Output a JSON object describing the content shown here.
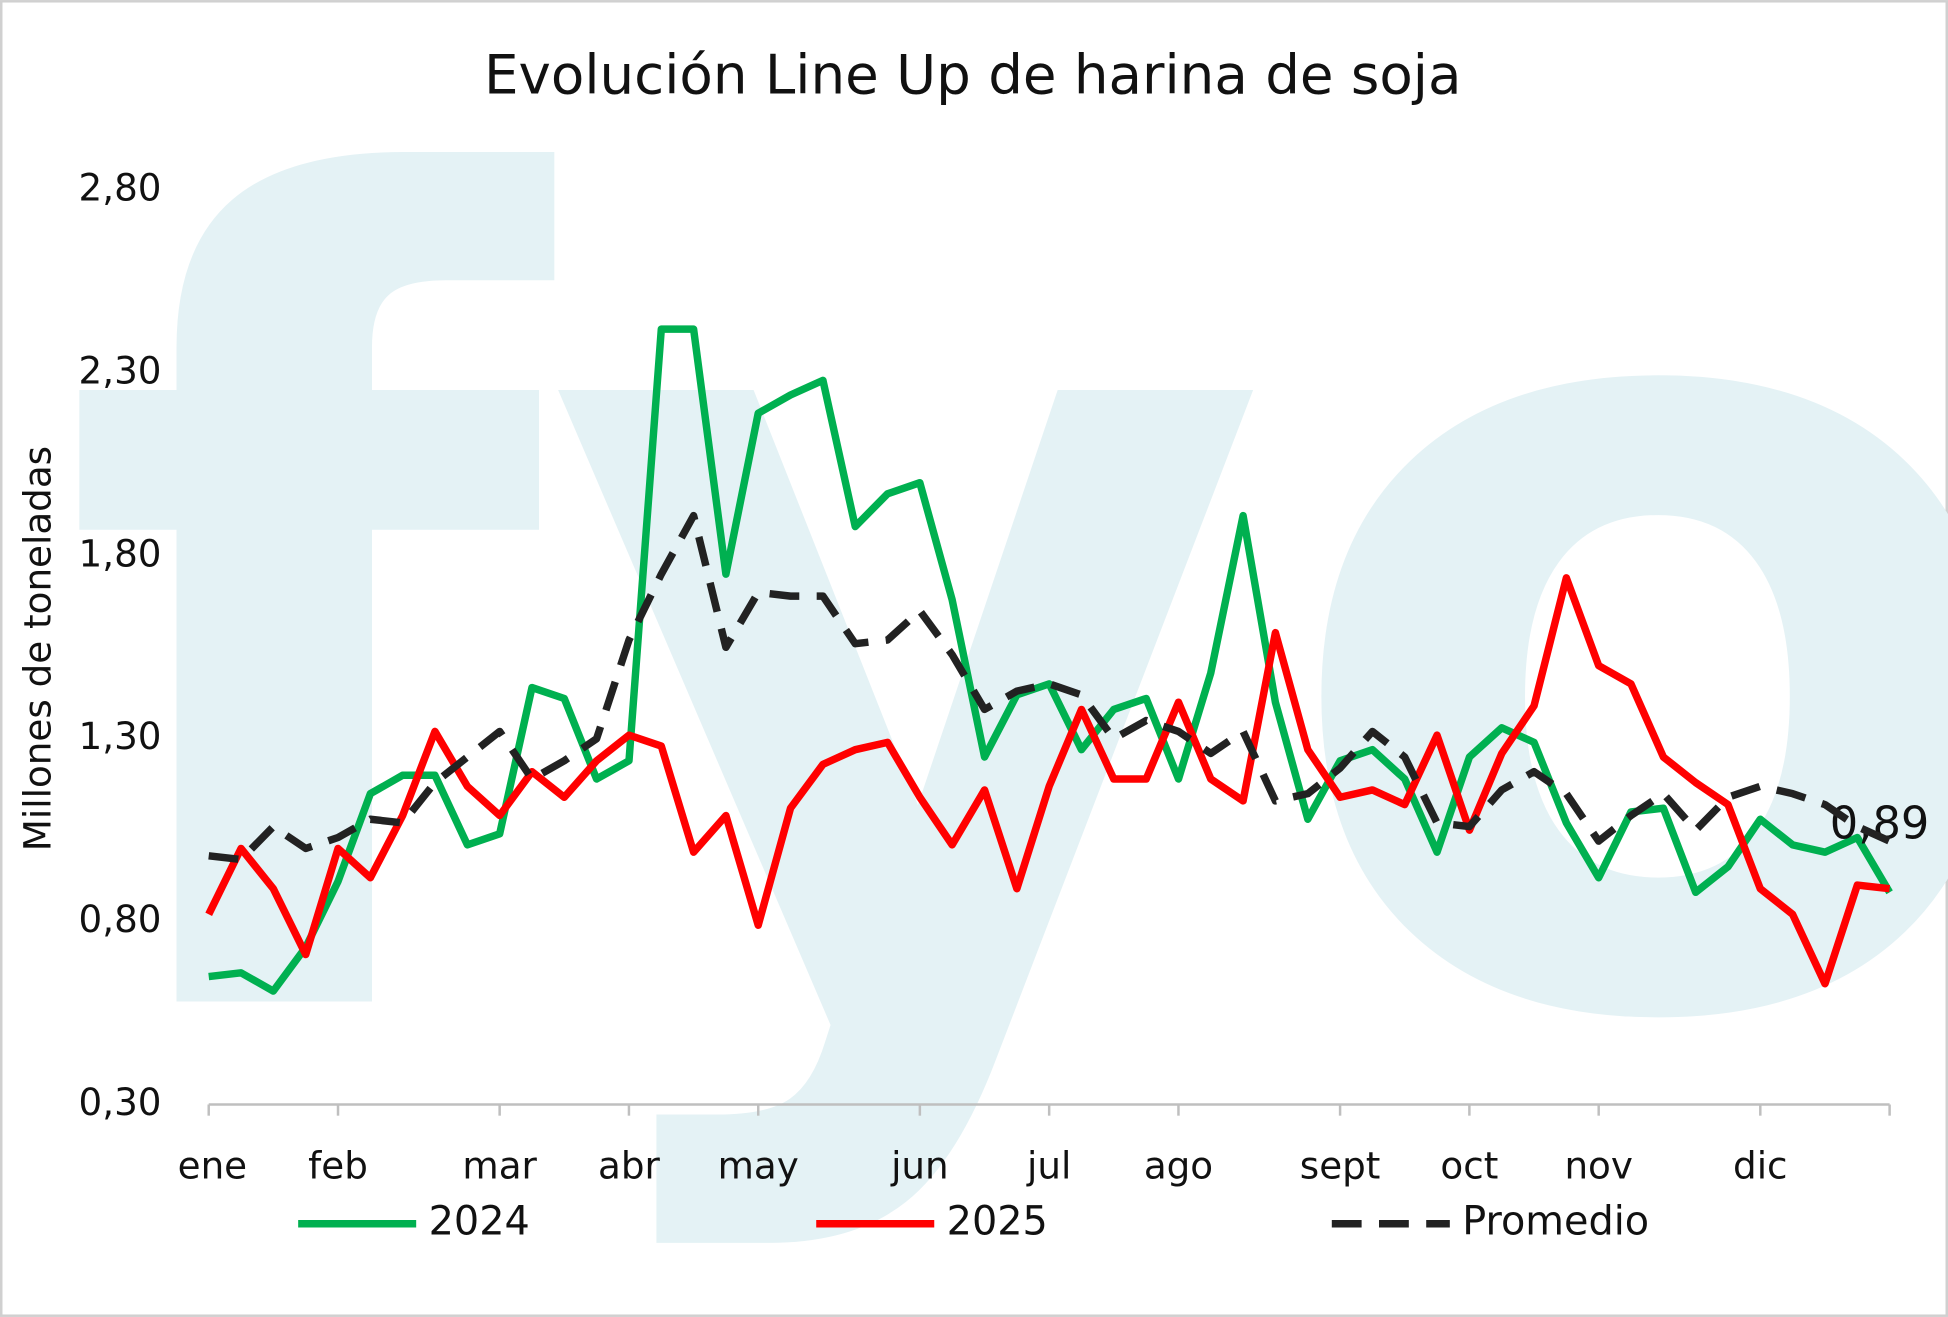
{
  "chart_data": {
    "type": "line",
    "title": "Evolución Line Up de harina de soja",
    "ylabel": "Millones de toneladas",
    "watermark": "fyo",
    "categories": [
      "ene",
      null,
      null,
      null,
      "feb",
      null,
      null,
      null,
      null,
      "mar",
      null,
      null,
      null,
      "abr",
      null,
      null,
      null,
      "may",
      null,
      null,
      null,
      null,
      "jun",
      null,
      null,
      null,
      "jul",
      null,
      null,
      null,
      "ago",
      null,
      null,
      null,
      null,
      "sept",
      null,
      null,
      null,
      "oct",
      null,
      null,
      null,
      "nov",
      null,
      null,
      null,
      null,
      "dic",
      null,
      null,
      null,
      null
    ],
    "series": [
      {
        "name": "2024",
        "color": "#00b050",
        "dash": false,
        "values": [
          0.65,
          0.66,
          0.61,
          0.73,
          0.91,
          1.15,
          1.2,
          1.2,
          1.01,
          1.04,
          1.44,
          1.41,
          1.19,
          1.24,
          2.42,
          2.42,
          1.75,
          2.19,
          2.24,
          2.28,
          1.88,
          1.97,
          2.0,
          1.68,
          1.25,
          1.42,
          1.45,
          1.27,
          1.38,
          1.41,
          1.19,
          1.48,
          1.91,
          1.4,
          1.08,
          1.24,
          1.27,
          1.19,
          0.99,
          1.25,
          1.33,
          1.29,
          1.07,
          0.92,
          1.1,
          1.11,
          0.88,
          0.95,
          1.08,
          1.01,
          0.99,
          1.03,
          0.88
        ]
      },
      {
        "name": "2025",
        "color": "#ff0000",
        "dash": false,
        "values": [
          0.82,
          1.0,
          0.89,
          0.71,
          1.0,
          0.92,
          1.09,
          1.32,
          1.17,
          1.09,
          1.21,
          1.14,
          1.24,
          1.31,
          1.28,
          0.99,
          1.09,
          0.79,
          1.11,
          1.23,
          1.27,
          1.29,
          1.14,
          1.01,
          1.16,
          0.89,
          1.17,
          1.38,
          1.19,
          1.19,
          1.4,
          1.19,
          1.13,
          1.59,
          1.27,
          1.14,
          1.16,
          1.12,
          1.31,
          1.05,
          1.26,
          1.39,
          1.74,
          1.5,
          1.45,
          1.25,
          1.18,
          1.12,
          0.89,
          0.82,
          0.63,
          0.9,
          0.89
        ],
        "value_labels": [
          null,
          null,
          null,
          null,
          null,
          null,
          null,
          null,
          null,
          null,
          null,
          null,
          null,
          null,
          null,
          null,
          null,
          null,
          null,
          null,
          null,
          null,
          null,
          null,
          null,
          null,
          null,
          null,
          null,
          null,
          null,
          null,
          null,
          null,
          null,
          null,
          null,
          null,
          null,
          null,
          null,
          null,
          null,
          null,
          null,
          null,
          null,
          null,
          null,
          null,
          null,
          null,
          "0,89"
        ]
      },
      {
        "name": "Promedio",
        "color": "#222222",
        "dash": true,
        "values": [
          0.98,
          0.97,
          1.06,
          1.0,
          1.03,
          1.08,
          1.07,
          1.18,
          1.25,
          1.32,
          1.19,
          1.24,
          1.3,
          1.57,
          1.75,
          1.91,
          1.55,
          1.7,
          1.69,
          1.69,
          1.56,
          1.57,
          1.65,
          1.53,
          1.38,
          1.43,
          1.45,
          1.42,
          1.3,
          1.35,
          1.32,
          1.26,
          1.32,
          1.13,
          1.15,
          1.22,
          1.32,
          1.25,
          1.07,
          1.06,
          1.16,
          1.21,
          1.15,
          1.02,
          1.09,
          1.15,
          1.05,
          1.14,
          1.17,
          1.15,
          1.12,
          1.06,
          1.02
        ]
      }
    ],
    "ylim": [
      0.3,
      2.8
    ],
    "yticks": [
      {
        "value": 0.3,
        "label": "0,30"
      },
      {
        "value": 0.8,
        "label": "0,80"
      },
      {
        "value": 1.3,
        "label": "1,30"
      },
      {
        "value": 1.8,
        "label": "1,80"
      },
      {
        "value": 2.3,
        "label": "2,30"
      },
      {
        "value": 2.8,
        "label": "2,80"
      }
    ],
    "grid": false,
    "legend": "bottom"
  }
}
